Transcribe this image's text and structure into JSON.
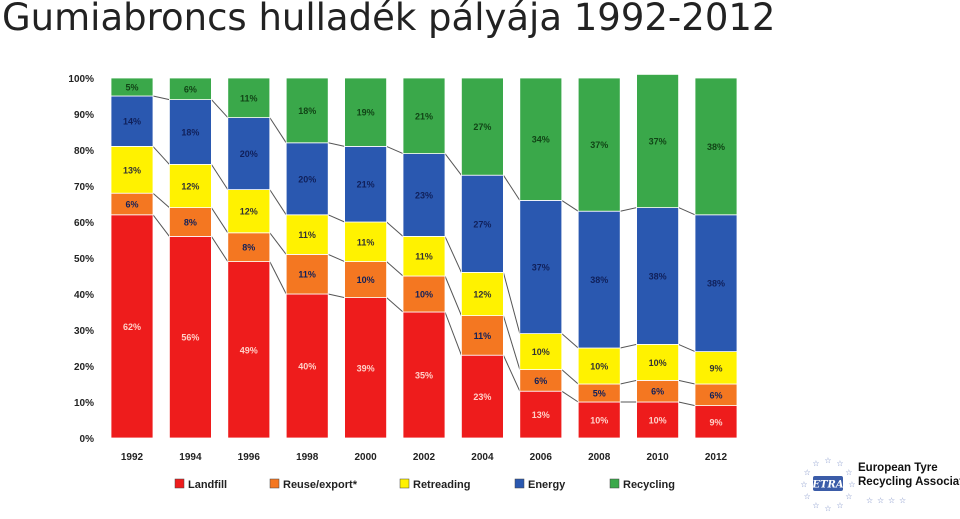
{
  "slide": {
    "title": "Gumiabroncs hulladék pályája 1992-2012"
  },
  "chart_data": {
    "type": "bar",
    "stacked": true,
    "categories": [
      "1992",
      "1994",
      "1996",
      "1998",
      "2000",
      "2002",
      "2004",
      "2006",
      "2008",
      "2010",
      "2012"
    ],
    "ylim": [
      0,
      100
    ],
    "yticks": [
      "0%",
      "10%",
      "20%",
      "30%",
      "40%",
      "50%",
      "60%",
      "70%",
      "80%",
      "90%",
      "100%"
    ],
    "legend_position": "bottom",
    "series": [
      {
        "name": "Landfill",
        "color": "#ee1c1c",
        "values": [
          62,
          56,
          49,
          40,
          39,
          35,
          23,
          13,
          10,
          10,
          9
        ],
        "labels": [
          "62%",
          "56%",
          "49%",
          "40%",
          "39%",
          "35%",
          "23%",
          "13%",
          "10%",
          "10%",
          "9%"
        ]
      },
      {
        "name": "Reuse/export*",
        "color": "#f47721",
        "values": [
          6,
          8,
          8,
          11,
          10,
          10,
          11,
          6,
          5,
          6,
          6
        ],
        "labels": [
          "6%",
          "8%",
          "8%",
          "11%",
          "10%",
          "10%",
          "11%",
          "6%",
          "5%",
          "6%",
          "6%"
        ]
      },
      {
        "name": "Retreading",
        "color": "#fff200",
        "values": [
          13,
          12,
          12,
          11,
          11,
          11,
          12,
          10,
          10,
          10,
          9
        ],
        "labels": [
          "13%",
          "12%",
          "12%",
          "11%",
          "11%",
          "11%",
          "12%",
          "10%",
          "10%",
          "10%",
          "9%"
        ]
      },
      {
        "name": "Energy",
        "color": "#2a58b0",
        "values": [
          14,
          18,
          20,
          20,
          21,
          23,
          27,
          37,
          38,
          38,
          38
        ],
        "labels": [
          "14%",
          "18%",
          "20%",
          "20%",
          "21%",
          "23%",
          "27%",
          "37%",
          "38%",
          "38%",
          "38%"
        ]
      },
      {
        "name": "Recycling",
        "color": "#3aa84a",
        "values": [
          5,
          6,
          11,
          18,
          19,
          21,
          27,
          34,
          37,
          37,
          38
        ],
        "labels": [
          "5%",
          "6%",
          "11%",
          "18%",
          "19%",
          "21%",
          "27%",
          "34%",
          "37%",
          "37%",
          "38%"
        ]
      }
    ]
  },
  "logo": {
    "mark_text": "ETRA",
    "org_line1": "European Tyre",
    "org_line2": "Recycling Association",
    "colors": {
      "blue": "#3b5ca8",
      "star": "#7d8fc7"
    }
  }
}
